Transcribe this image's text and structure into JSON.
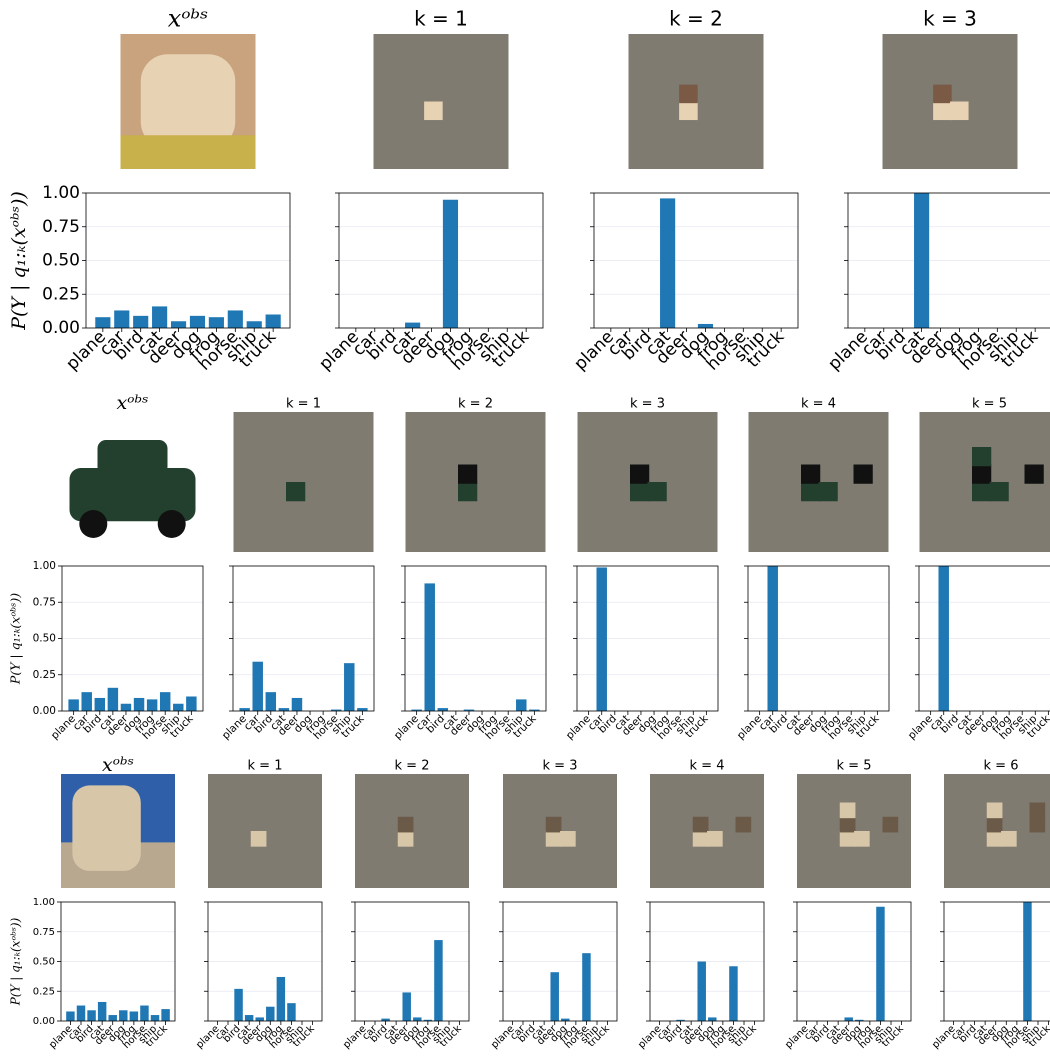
{
  "chart_data": [
    {
      "type": "bar",
      "title": "xᵒᵇˢ",
      "ylabel": "P(Y | q₁:ₖ(xᵒᵇˢ))",
      "categories": [
        "plane",
        "car",
        "bird",
        "cat",
        "deer",
        "dog",
        "frog",
        "horse",
        "ship",
        "truck"
      ],
      "values": [
        0.08,
        0.13,
        0.09,
        0.16,
        0.05,
        0.09,
        0.08,
        0.13,
        0.05,
        0.1
      ],
      "color": "#1f77b4",
      "ylim": [
        0,
        1
      ],
      "yticks": [
        {
          "value": 0,
          "label": "0.00"
        },
        {
          "value": 0.25,
          "label": "0.25"
        },
        {
          "value": 0.5,
          "label": "0.50"
        },
        {
          "value": 0.75,
          "label": "0.75"
        },
        {
          "value": 1,
          "label": "1.00"
        }
      ],
      "grid": true
    },
    {
      "type": "bar",
      "title": "k = 1",
      "categories": [
        "plane",
        "car",
        "bird",
        "cat",
        "deer",
        "dog",
        "frog",
        "horse",
        "ship",
        "truck"
      ],
      "values": [
        0,
        0,
        0,
        0.04,
        0,
        0.95,
        0,
        0,
        0,
        0
      ],
      "color": "#1f77b4",
      "ylim": [
        0,
        1
      ],
      "yticks": [
        0,
        0.25,
        0.5,
        0.75,
        1
      ],
      "grid": true
    },
    {
      "type": "bar",
      "title": "k = 2",
      "categories": [
        "plane",
        "car",
        "bird",
        "cat",
        "deer",
        "dog",
        "frog",
        "horse",
        "ship",
        "truck"
      ],
      "values": [
        0,
        0,
        0,
        0.96,
        0,
        0.03,
        0,
        0,
        0,
        0
      ],
      "color": "#1f77b4",
      "ylim": [
        0,
        1
      ],
      "yticks": [
        0,
        0.25,
        0.5,
        0.75,
        1
      ],
      "grid": true
    },
    {
      "type": "bar",
      "title": "k = 3",
      "categories": [
        "plane",
        "car",
        "bird",
        "cat",
        "deer",
        "dog",
        "frog",
        "horse",
        "ship",
        "truck"
      ],
      "values": [
        0,
        0,
        0,
        1,
        0,
        0,
        0,
        0,
        0,
        0
      ],
      "color": "#1f77b4",
      "ylim": [
        0,
        1
      ],
      "yticks": [
        0,
        0.25,
        0.5,
        0.75,
        1
      ],
      "grid": true
    },
    {
      "type": "bar",
      "title": "xᵒᵇˢ",
      "ylabel": "P(Y | q₁:ₖ(xᵒᵇˢ))",
      "categories": [
        "plane",
        "car",
        "bird",
        "cat",
        "deer",
        "dog",
        "frog",
        "horse",
        "ship",
        "truck"
      ],
      "values": [
        0.08,
        0.13,
        0.09,
        0.16,
        0.05,
        0.09,
        0.08,
        0.13,
        0.05,
        0.1
      ],
      "color": "#1f77b4",
      "ylim": [
        0,
        1
      ],
      "yticks": [
        {
          "value": 0,
          "label": "0.00"
        },
        {
          "value": 0.25,
          "label": "0.25"
        },
        {
          "value": 0.5,
          "label": "0.50"
        },
        {
          "value": 0.75,
          "label": "0.75"
        },
        {
          "value": 1,
          "label": "1.00"
        }
      ],
      "grid": true
    },
    {
      "type": "bar",
      "title": "k = 1",
      "categories": [
        "plane",
        "car",
        "bird",
        "cat",
        "deer",
        "dog",
        "frog",
        "horse",
        "ship",
        "truck"
      ],
      "values": [
        0.02,
        0.34,
        0.13,
        0.02,
        0.09,
        0,
        0,
        0.01,
        0.33,
        0.02
      ],
      "color": "#1f77b4",
      "ylim": [
        0,
        1
      ],
      "yticks": [
        0,
        0.25,
        0.5,
        0.75,
        1
      ],
      "grid": true
    },
    {
      "type": "bar",
      "title": "k = 2",
      "categories": [
        "plane",
        "car",
        "bird",
        "cat",
        "deer",
        "dog",
        "frog",
        "horse",
        "ship",
        "truck"
      ],
      "values": [
        0.01,
        0.88,
        0.02,
        0,
        0.01,
        0,
        0,
        0,
        0.08,
        0.01
      ],
      "color": "#1f77b4",
      "ylim": [
        0,
        1
      ],
      "yticks": [
        0,
        0.25,
        0.5,
        0.75,
        1
      ],
      "grid": true
    },
    {
      "type": "bar",
      "title": "k = 3",
      "categories": [
        "plane",
        "car",
        "bird",
        "cat",
        "deer",
        "dog",
        "frog",
        "horse",
        "ship",
        "truck"
      ],
      "values": [
        0,
        0.99,
        0,
        0,
        0,
        0,
        0,
        0,
        0,
        0
      ],
      "color": "#1f77b4",
      "ylim": [
        0,
        1
      ],
      "yticks": [
        0,
        0.25,
        0.5,
        0.75,
        1
      ],
      "grid": true
    },
    {
      "type": "bar",
      "title": "k = 4",
      "categories": [
        "plane",
        "car",
        "bird",
        "cat",
        "deer",
        "dog",
        "frog",
        "horse",
        "ship",
        "truck"
      ],
      "values": [
        0,
        1,
        0,
        0,
        0,
        0,
        0,
        0,
        0,
        0
      ],
      "color": "#1f77b4",
      "ylim": [
        0,
        1
      ],
      "yticks": [
        0,
        0.25,
        0.5,
        0.75,
        1
      ],
      "grid": true
    },
    {
      "type": "bar",
      "title": "k = 5",
      "categories": [
        "plane",
        "car",
        "bird",
        "cat",
        "deer",
        "dog",
        "frog",
        "horse",
        "ship",
        "truck"
      ],
      "values": [
        0,
        1,
        0,
        0,
        0,
        0,
        0,
        0,
        0,
        0
      ],
      "color": "#1f77b4",
      "ylim": [
        0,
        1
      ],
      "yticks": [
        0,
        0.25,
        0.5,
        0.75,
        1
      ],
      "grid": true
    },
    {
      "type": "bar",
      "title": "xᵒᵇˢ",
      "ylabel": "P(Y | q₁:ₖ(xᵒᵇˢ))",
      "categories": [
        "plane",
        "car",
        "bird",
        "cat",
        "deer",
        "dog",
        "frog",
        "horse",
        "ship",
        "truck"
      ],
      "values": [
        0.08,
        0.13,
        0.09,
        0.16,
        0.05,
        0.09,
        0.08,
        0.13,
        0.05,
        0.1
      ],
      "color": "#1f77b4",
      "ylim": [
        0,
        1
      ],
      "yticks": [
        {
          "value": 0,
          "label": "0.00"
        },
        {
          "value": 0.25,
          "label": "0.25"
        },
        {
          "value": 0.5,
          "label": "0.50"
        },
        {
          "value": 0.75,
          "label": "0.75"
        },
        {
          "value": 1,
          "label": "1.00"
        }
      ],
      "grid": true
    },
    {
      "type": "bar",
      "title": "k = 1",
      "categories": [
        "plane",
        "car",
        "bird",
        "cat",
        "deer",
        "dog",
        "frog",
        "horse",
        "ship",
        "truck"
      ],
      "values": [
        0,
        0,
        0.27,
        0.05,
        0.03,
        0.12,
        0.37,
        0.15,
        0,
        0
      ],
      "color": "#1f77b4",
      "ylim": [
        0,
        1
      ],
      "yticks": [
        0,
        0.25,
        0.5,
        0.75,
        1
      ],
      "grid": true
    },
    {
      "type": "bar",
      "title": "k = 2",
      "categories": [
        "plane",
        "car",
        "bird",
        "cat",
        "deer",
        "dog",
        "frog",
        "horse",
        "ship",
        "truck"
      ],
      "values": [
        0,
        0,
        0.02,
        0,
        0.24,
        0.03,
        0.01,
        0.68,
        0,
        0
      ],
      "color": "#1f77b4",
      "ylim": [
        0,
        1
      ],
      "yticks": [
        0,
        0.25,
        0.5,
        0.75,
        1
      ],
      "grid": true
    },
    {
      "type": "bar",
      "title": "k = 3",
      "categories": [
        "plane",
        "car",
        "bird",
        "cat",
        "deer",
        "dog",
        "frog",
        "horse",
        "ship",
        "truck"
      ],
      "values": [
        0,
        0,
        0,
        0,
        0.41,
        0.02,
        0,
        0.57,
        0,
        0
      ],
      "color": "#1f77b4",
      "ylim": [
        0,
        1
      ],
      "yticks": [
        0,
        0.25,
        0.5,
        0.75,
        1
      ],
      "grid": true
    },
    {
      "type": "bar",
      "title": "k = 4",
      "categories": [
        "plane",
        "car",
        "bird",
        "cat",
        "deer",
        "dog",
        "frog",
        "horse",
        "ship",
        "truck"
      ],
      "values": [
        0,
        0,
        0.01,
        0,
        0.5,
        0.03,
        0,
        0.46,
        0,
        0
      ],
      "color": "#1f77b4",
      "ylim": [
        0,
        1
      ],
      "yticks": [
        0,
        0.25,
        0.5,
        0.75,
        1
      ],
      "grid": true
    },
    {
      "type": "bar",
      "title": "k = 5",
      "categories": [
        "plane",
        "car",
        "bird",
        "cat",
        "deer",
        "dog",
        "frog",
        "horse",
        "ship",
        "truck"
      ],
      "values": [
        0,
        0,
        0,
        0,
        0.03,
        0.01,
        0,
        0.96,
        0,
        0
      ],
      "color": "#1f77b4",
      "ylim": [
        0,
        1
      ],
      "yticks": [
        0,
        0.25,
        0.5,
        0.75,
        1
      ],
      "grid": true
    },
    {
      "type": "bar",
      "title": "k = 6",
      "categories": [
        "plane",
        "car",
        "bird",
        "cat",
        "deer",
        "dog",
        "frog",
        "horse",
        "ship",
        "truck"
      ],
      "values": [
        0,
        0,
        0,
        0,
        0,
        0,
        0,
        1,
        0,
        0
      ],
      "color": "#1f77b4",
      "ylim": [
        0,
        1
      ],
      "yticks": [
        0,
        0.25,
        0.5,
        0.75,
        1
      ],
      "grid": true
    }
  ]
}
